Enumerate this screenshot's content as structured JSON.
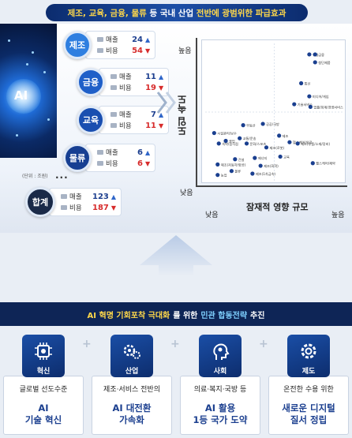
{
  "header": {
    "banner_part1": "제조, 교육, 금융, 물류",
    "banner_part2": "등 국내 산업",
    "banner_part3": "전반에 광범위한 파급효과",
    "ai_label": "AI"
  },
  "legend": {
    "sales_label": "매출",
    "cost_label": "비용"
  },
  "sectors": [
    {
      "name": "제조",
      "sales": "24",
      "cost": "54",
      "color": "#2f7fe0"
    },
    {
      "name": "금융",
      "sales": "11",
      "cost": "19",
      "color": "#1f5fc8"
    },
    {
      "name": "교육",
      "sales": "7",
      "cost": "11",
      "color": "#1a4fb0"
    },
    {
      "name": "물류",
      "sales": "6",
      "cost": "6",
      "color": "#173f92"
    }
  ],
  "total": {
    "name": "합계",
    "sales": "123",
    "cost": "187",
    "color": "#1a2a48"
  },
  "unit_note": "(단위 : 조원)",
  "ellipsis": "···",
  "chart_data": {
    "type": "scatter",
    "ylabel": "도입 속도",
    "xlabel": "잠재적 영향 규모",
    "y_high": "높음",
    "y_low": "낮음",
    "x_high": "높음",
    "x_low": "낮음",
    "xlim": [
      0,
      100
    ],
    "ylim": [
      0,
      100
    ],
    "points": [
      {
        "label": "유통",
        "x": 87,
        "y": 94
      },
      {
        "label": "금융",
        "x": 92,
        "y": 94
      },
      {
        "label": "첨단제품",
        "x": 92,
        "y": 88
      },
      {
        "label": "통신",
        "x": 80,
        "y": 72
      },
      {
        "label": "미디어/게임",
        "x": 87,
        "y": 62
      },
      {
        "label": "기술서비스",
        "x": 74,
        "y": 56
      },
      {
        "label": "법률/회계/경영서비스",
        "x": 88,
        "y": 54
      },
      {
        "label": "공공/국방",
        "x": 47,
        "y": 41
      },
      {
        "label": "부동산",
        "x": 30,
        "y": 40
      },
      {
        "label": "시설관리/보수",
        "x": 5,
        "y": 34
      },
      {
        "label": "제조",
        "x": 61,
        "y": 32
      },
      {
        "label": "교통/운송",
        "x": 27,
        "y": 30
      },
      {
        "label": "숙박/음식점",
        "x": 9,
        "y": 26
      },
      {
        "label": "광업",
        "x": 15,
        "y": 28
      },
      {
        "label": "문화/스포츠",
        "x": 33,
        "y": 26
      },
      {
        "label": "제조(로봇)",
        "x": 50,
        "y": 23
      },
      {
        "label": "헬스케어/의료",
        "x": 70,
        "y": 27
      },
      {
        "label": "제조(부품/소재/장비)",
        "x": 77,
        "y": 26
      },
      {
        "label": "교육",
        "x": 62,
        "y": 16
      },
      {
        "label": "헬스케어/제약",
        "x": 90,
        "y": 11
      },
      {
        "label": "에너지",
        "x": 40,
        "y": 15
      },
      {
        "label": "건설",
        "x": 23,
        "y": 14
      },
      {
        "label": "제조(화학)",
        "x": 45,
        "y": 9
      },
      {
        "label": "제조(자동차/항공)",
        "x": 8,
        "y": 10
      },
      {
        "label": "물류",
        "x": 20,
        "y": 5
      },
      {
        "label": "제조(1차금속)",
        "x": 38,
        "y": 3
      },
      {
        "label": "농업",
        "x": 8,
        "y": 2
      }
    ]
  },
  "strategy": {
    "part1": "AI 혁명 기회포착 극대화",
    "part2": "를 위한",
    "part3": "민관 합동전략",
    "part4": "추진"
  },
  "pillars": [
    {
      "title": "혁신",
      "desc": "글로벌 선도수준",
      "hl1": "AI",
      "hl2": "기술 혁신",
      "icon": "chip-icon"
    },
    {
      "title": "산업",
      "desc": "제조·서비스 전반의",
      "hl1": "AI 대전환",
      "hl2": "가속화",
      "icon": "gears-icon"
    },
    {
      "title": "사회",
      "desc": "의료·복지·국방 등",
      "hl1": "AI 활용",
      "hl2": "1등 국가 도약",
      "icon": "head-icon"
    },
    {
      "title": "제도",
      "desc": "온전한 수용 위한",
      "hl1": "새로운 디지털",
      "hl2": "질서 정립",
      "icon": "gear-icon"
    }
  ],
  "colors": {
    "navy": "#0e2556",
    "accent_yellow": "#ffd84a",
    "up_blue": "#1d3f8f",
    "down_red": "#d72b2b"
  }
}
